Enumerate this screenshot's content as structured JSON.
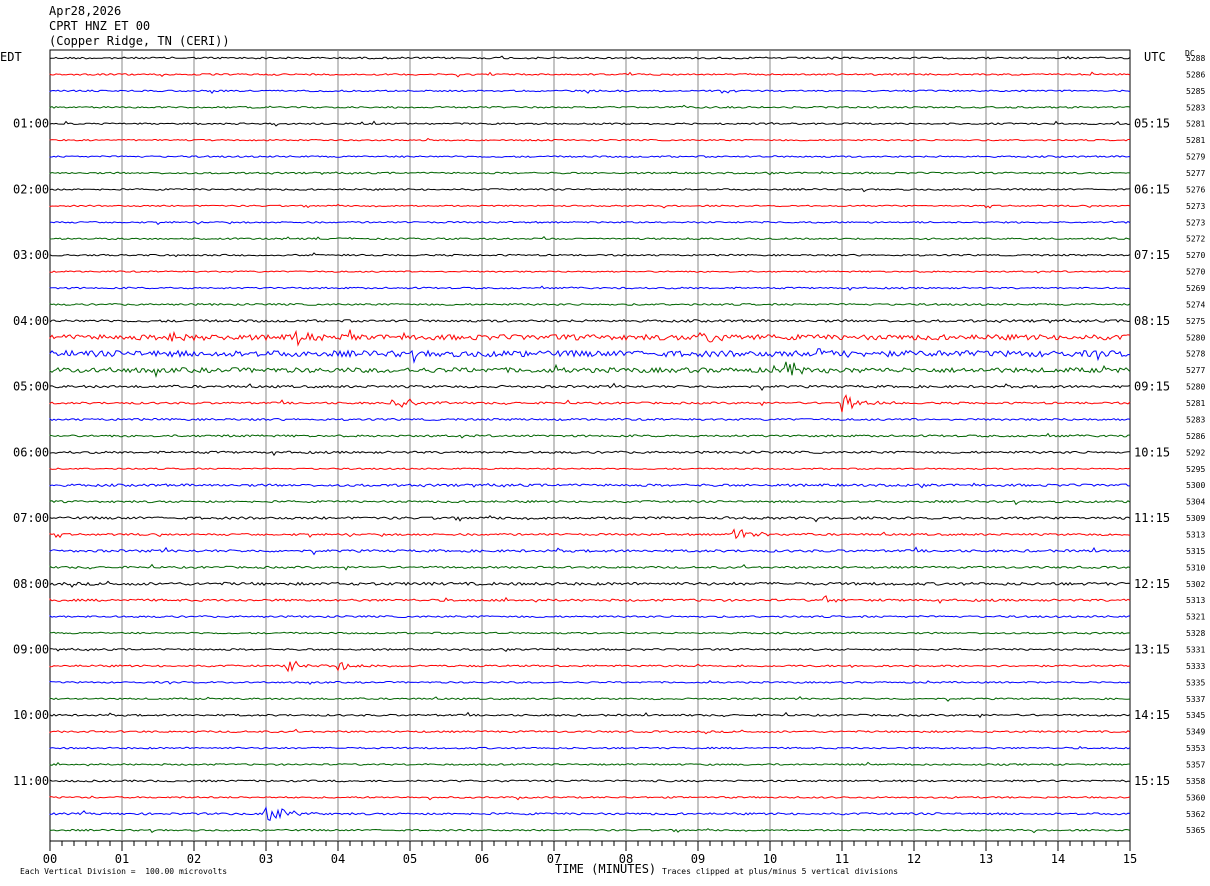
{
  "header": {
    "date": "Apr28,2026",
    "station": "CPRT HNZ ET 00",
    "location": "(Copper Ridge, TN (CERI))"
  },
  "left_timezone": "EDT",
  "right_timezone": "UTC",
  "dc_label": "DC",
  "footer": {
    "scale": "Each Vertical Division =  100.00 microvolts",
    "xaxis_title": "TIME (MINUTES)",
    "clip_note": "Traces clipped at plus/minus 5 vertical divisions"
  },
  "chart_data": {
    "type": "line",
    "title": "CPRT HNZ ET 00",
    "xlabel": "TIME (MINUTES)",
    "xlim": [
      0,
      15
    ],
    "x_ticks": [
      "00",
      "01",
      "02",
      "03",
      "04",
      "05",
      "06",
      "07",
      "08",
      "09",
      "10",
      "11",
      "12",
      "13",
      "14",
      "15"
    ],
    "left_hour_labels": [
      "01:00",
      "02:00",
      "03:00",
      "04:00",
      "05:00",
      "06:00",
      "07:00",
      "08:00",
      "09:00",
      "10:00",
      "11:00"
    ],
    "right_hour_labels": [
      "05:15",
      "06:15",
      "07:15",
      "08:15",
      "09:15",
      "10:15",
      "11:15",
      "12:15",
      "13:15",
      "14:15",
      "15:15"
    ],
    "trace_colors": [
      "#000000",
      "#ff0000",
      "#0000ff",
      "#006400"
    ],
    "dc_values": [
      "5288",
      "5286",
      "5285",
      "5283",
      "5281",
      "5281",
      "5279",
      "5277",
      "5276",
      "5273",
      "5273",
      "5272",
      "5270",
      "5270",
      "5269",
      "5274",
      "5275",
      "5280",
      "5278",
      "5277",
      "5280",
      "5281",
      "5283",
      "5286",
      "5292",
      "5295",
      "5300",
      "5304",
      "5309",
      "5313",
      "5315",
      "5310",
      "5302",
      "5313",
      "5321",
      "5328",
      "5331",
      "5333",
      "5335",
      "5337",
      "5345",
      "5349",
      "5353",
      "5357",
      "5358",
      "5360",
      "5362",
      "5365"
    ],
    "trace_noise": [
      0.9,
      0.8,
      0.8,
      0.8,
      0.8,
      0.7,
      0.8,
      0.8,
      0.8,
      0.7,
      0.8,
      0.8,
      0.8,
      0.7,
      0.8,
      0.9,
      1.2,
      2.6,
      3.0,
      2.4,
      1.2,
      1.0,
      1.0,
      1.0,
      1.1,
      0.7,
      1.2,
      1.0,
      1.2,
      1.0,
      1.2,
      1.0,
      1.4,
      1.1,
      0.9,
      0.8,
      0.9,
      0.9,
      0.8,
      0.8,
      0.9,
      0.9,
      0.8,
      0.8,
      0.9,
      0.8,
      1.0,
      0.8
    ],
    "events": [
      {
        "trace": 17,
        "minute": 3.4,
        "amp": 9
      },
      {
        "trace": 17,
        "minute": 9.05,
        "amp": 12
      },
      {
        "trace": 17,
        "minute": 1.6,
        "amp": 8
      },
      {
        "trace": 18,
        "minute": 10.5,
        "amp": 8
      },
      {
        "trace": 19,
        "minute": 10.2,
        "amp": 9
      },
      {
        "trace": 21,
        "minute": 4.8,
        "amp": 8
      },
      {
        "trace": 21,
        "minute": 11.0,
        "amp": 11
      },
      {
        "trace": 29,
        "minute": 9.5,
        "amp": 7
      },
      {
        "trace": 33,
        "minute": 10.75,
        "amp": 7
      },
      {
        "trace": 37,
        "minute": 3.3,
        "amp": 6
      },
      {
        "trace": 37,
        "minute": 4.0,
        "amp": 5
      },
      {
        "trace": 46,
        "minute": 3.0,
        "amp": 10
      }
    ]
  }
}
